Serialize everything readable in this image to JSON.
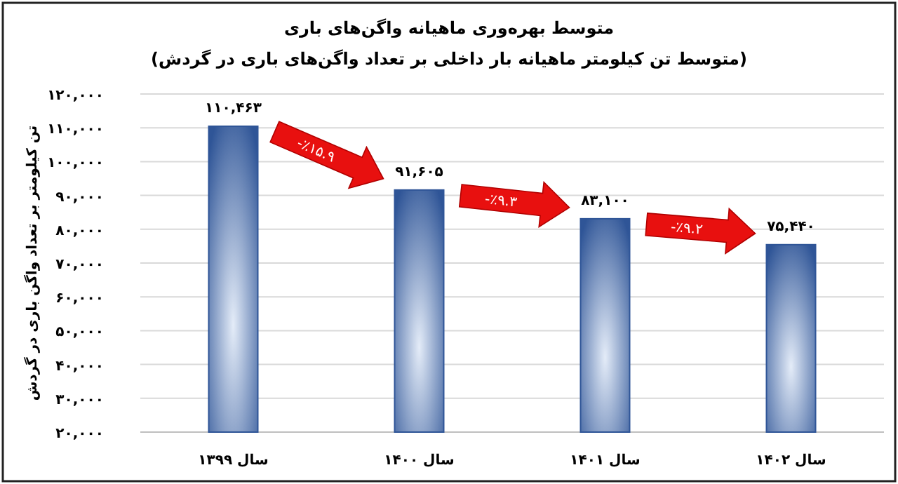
{
  "chart_data": {
    "type": "bar",
    "title": "متوسط بهره‌وری ماهیانه واگن‌های باری",
    "subtitle": "(متوسط تن کیلومتر ماهیانه بار داخلی بر تعداد واگن‌های باری در گردش)",
    "ylabel": "تن کیلومتر بر تعداد واگن باری در گردش",
    "categories": [
      "سال ۱۳۹۹",
      "سال ۱۴۰۰",
      "سال ۱۴۰۱",
      "سال ۱۴۰۲"
    ],
    "values": [
      110463,
      91605,
      83100,
      75440
    ],
    "value_labels": [
      "۱۱۰,۴۶۳",
      "۹۱,۶۰۵",
      "۸۳,۱۰۰",
      "۷۵,۴۴۰"
    ],
    "color": "#2f5597",
    "ylim": [
      20000,
      120000
    ],
    "yticks": [
      {
        "value": 20000,
        "label": "۲۰,۰۰۰"
      },
      {
        "value": 30000,
        "label": "۳۰,۰۰۰"
      },
      {
        "value": 40000,
        "label": "۴۰,۰۰۰"
      },
      {
        "value": 50000,
        "label": "۵۰,۰۰۰"
      },
      {
        "value": 60000,
        "label": "۶۰,۰۰۰"
      },
      {
        "value": 70000,
        "label": "۷۰,۰۰۰"
      },
      {
        "value": 80000,
        "label": "۸۰,۰۰۰"
      },
      {
        "value": 90000,
        "label": "۹۰,۰۰۰"
      },
      {
        "value": 100000,
        "label": "۱۰۰,۰۰۰"
      },
      {
        "value": 110000,
        "label": "۱۱۰,۰۰۰"
      },
      {
        "value": 120000,
        "label": "۱۲۰,۰۰۰"
      }
    ],
    "grid": "y",
    "annotations": [
      "-٪۱۵.۹",
      "-٪۹.۳",
      "-٪۹.۲"
    ]
  }
}
